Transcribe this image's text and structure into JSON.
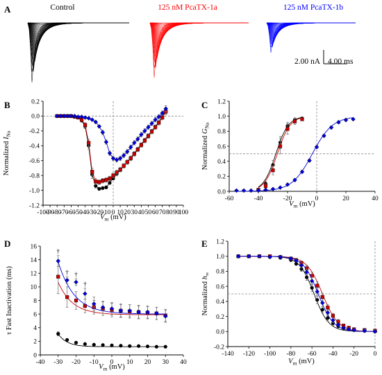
{
  "panel_a": {
    "letter": "A",
    "traces": [
      {
        "label": "Control",
        "color": "#000000",
        "n_traces": 30,
        "peak_scale": 1.0
      },
      {
        "label": "125 nM PcaTX-1a",
        "color": "#ff0000",
        "n_traces": 30,
        "peak_scale": 0.92
      },
      {
        "label": "125 nM PcaTX-1b",
        "color": "#0000ff",
        "n_traces": 30,
        "peak_scale": 0.5
      }
    ],
    "scale_bar": {
      "current_label": "2.00 nA",
      "time_label": "4.00 ms"
    }
  },
  "colors": {
    "control": "#000000",
    "pcatx_1a": "#cc0000",
    "pcatx_1b": "#0000dd"
  },
  "chart_data": [
    {
      "panel": "B",
      "type": "line",
      "xlabel_main": "V",
      "xlabel_sub": "m",
      "xlabel_unit": " (mV)",
      "ylabel_main": "Normalized I",
      "ylabel_sub": "Na",
      "xlim": [
        -100,
        100
      ],
      "ylim": [
        -1.2,
        0.2
      ],
      "xticks": [
        -100,
        -90,
        -80,
        -70,
        -60,
        -50,
        -40,
        -30,
        -20,
        -10,
        0,
        10,
        20,
        30,
        40,
        50,
        60,
        70,
        80,
        90,
        100
      ],
      "yticks": [
        -1.2,
        -1.0,
        -0.8,
        -0.6,
        -0.4,
        -0.2,
        0.0,
        0.2
      ],
      "ytick_labels": [
        "-1.2",
        "-1.0",
        "-0.8",
        "-0.6",
        "-0.4",
        "-0.2",
        "0.0",
        "0.2"
      ],
      "ref_lines": {
        "x": 0,
        "y": 0
      },
      "x": [
        -80,
        -75,
        -70,
        -65,
        -60,
        -55,
        -50,
        -45,
        -40,
        -35,
        -30,
        -25,
        -20,
        -15,
        -10,
        -5,
        0,
        5,
        10,
        15,
        20,
        25,
        30,
        35,
        40,
        45,
        50,
        55,
        60,
        65,
        70,
        75
      ],
      "series": [
        {
          "key": "control",
          "marker": "circle",
          "values": [
            0,
            0,
            0,
            0,
            0,
            -0.01,
            -0.02,
            -0.06,
            -0.14,
            -0.4,
            -0.79,
            -0.94,
            -0.98,
            -0.97,
            -0.96,
            -0.9,
            -0.84,
            -0.78,
            -0.73,
            -0.67,
            -0.62,
            -0.56,
            -0.5,
            -0.44,
            -0.38,
            -0.32,
            -0.26,
            -0.2,
            -0.14,
            -0.08,
            -0.01,
            0.07
          ],
          "errors": [
            0.01,
            0.01,
            0.01,
            0.01,
            0.01,
            0.01,
            0.01,
            0.02,
            0.03,
            0.05,
            0.05,
            0.03,
            0.02,
            0.02,
            0.02,
            0.02,
            0.02,
            0.02,
            0.02,
            0.02,
            0.02,
            0.02,
            0.02,
            0.02,
            0.02,
            0.02,
            0.02,
            0.02,
            0.02,
            0.02,
            0.03,
            0.04
          ]
        },
        {
          "key": "pcatx_1a",
          "marker": "square",
          "values": [
            0,
            0,
            0,
            0,
            0,
            -0.01,
            -0.02,
            -0.05,
            -0.12,
            -0.36,
            -0.75,
            -0.88,
            -0.89,
            -0.87,
            -0.86,
            -0.84,
            -0.8,
            -0.76,
            -0.72,
            -0.67,
            -0.62,
            -0.57,
            -0.51,
            -0.45,
            -0.39,
            -0.33,
            -0.27,
            -0.21,
            -0.15,
            -0.09,
            -0.02,
            0.06
          ],
          "errors": [
            0.01,
            0.01,
            0.01,
            0.01,
            0.01,
            0.01,
            0.01,
            0.02,
            0.03,
            0.05,
            0.05,
            0.04,
            0.03,
            0.03,
            0.03,
            0.03,
            0.03,
            0.03,
            0.03,
            0.03,
            0.03,
            0.03,
            0.03,
            0.03,
            0.03,
            0.03,
            0.03,
            0.03,
            0.03,
            0.03,
            0.03,
            0.04
          ]
        },
        {
          "key": "pcatx_1b",
          "marker": "diamond",
          "values": [
            0,
            0,
            0,
            0,
            0,
            0,
            -0.01,
            -0.01,
            -0.02,
            -0.03,
            -0.05,
            -0.08,
            -0.14,
            -0.22,
            -0.35,
            -0.5,
            -0.57,
            -0.59,
            -0.57,
            -0.53,
            -0.48,
            -0.42,
            -0.36,
            -0.31,
            -0.25,
            -0.2,
            -0.15,
            -0.1,
            -0.05,
            -0.01,
            0.04,
            0.1
          ],
          "errors": [
            0.01,
            0.01,
            0.01,
            0.01,
            0.01,
            0.01,
            0.01,
            0.01,
            0.01,
            0.01,
            0.01,
            0.02,
            0.02,
            0.03,
            0.03,
            0.03,
            0.03,
            0.03,
            0.03,
            0.03,
            0.03,
            0.03,
            0.03,
            0.03,
            0.03,
            0.03,
            0.03,
            0.03,
            0.03,
            0.03,
            0.03,
            0.04
          ]
        }
      ]
    },
    {
      "panel": "C",
      "type": "line",
      "xlabel_main": "V",
      "xlabel_sub": "m",
      "xlabel_unit": " (mV)",
      "ylabel_main": "Normalized G",
      "ylabel_sub": "Na",
      "xlim": [
        -60,
        40
      ],
      "ylim": [
        0,
        1.2
      ],
      "xticks": [
        -60,
        -40,
        -20,
        0,
        20,
        40
      ],
      "yticks": [
        0,
        0.2,
        0.4,
        0.6,
        0.8,
        1.0,
        1.2
      ],
      "ytick_labels": [
        "0.0",
        "0.2",
        "0.4",
        "0.6",
        "0.8",
        "1.0",
        "1.2"
      ],
      "ref_lines": {
        "x": 0,
        "y": 0.5
      },
      "series": [
        {
          "key": "control",
          "marker": "circle",
          "x": [
            -40,
            -35,
            -30,
            -25,
            -20,
            -15,
            -10
          ],
          "values": [
            0.02,
            0.1,
            0.35,
            0.65,
            0.87,
            0.95,
            0.97
          ],
          "errors": [
            0.01,
            0.03,
            0.06,
            0.08,
            0.05,
            0.03,
            0.02
          ],
          "fit": {
            "v_half": -28,
            "k": 4.3
          }
        },
        {
          "key": "pcatx_1a",
          "marker": "square",
          "x": [
            -40,
            -35,
            -30,
            -25,
            -20,
            -15,
            -10
          ],
          "values": [
            0.02,
            0.07,
            0.28,
            0.6,
            0.83,
            0.93,
            0.96
          ],
          "errors": [
            0.01,
            0.03,
            0.06,
            0.1,
            0.07,
            0.04,
            0.02
          ],
          "fit": {
            "v_half": -27,
            "k": 4.4
          }
        },
        {
          "key": "pcatx_1b",
          "marker": "diamond",
          "x": [
            -55,
            -50,
            -45,
            -40,
            -35,
            -30,
            -25,
            -20,
            -15,
            -10,
            -5,
            0,
            5,
            10,
            15,
            20,
            25
          ],
          "values": [
            0.01,
            0.01,
            0.01,
            0.01,
            0.02,
            0.03,
            0.05,
            0.09,
            0.15,
            0.26,
            0.41,
            0.59,
            0.74,
            0.85,
            0.92,
            0.95,
            0.96
          ],
          "errors": [
            0.01,
            0.01,
            0.01,
            0.01,
            0.01,
            0.01,
            0.01,
            0.01,
            0.02,
            0.02,
            0.02,
            0.02,
            0.02,
            0.02,
            0.02,
            0.02,
            0.01
          ],
          "fit": {
            "v_half": -3,
            "k": 7.0
          }
        }
      ]
    },
    {
      "panel": "D",
      "type": "line",
      "xlabel_main": "V",
      "xlabel_sub": "m",
      "xlabel_unit": " (mV)",
      "ylabel_main": "τ Fast Inactivation (ms)",
      "ylabel_sub": "",
      "xlim": [
        -40,
        40
      ],
      "ylim": [
        0,
        16
      ],
      "xticks": [
        -40,
        -30,
        -20,
        -10,
        0,
        10,
        20,
        30,
        40
      ],
      "yticks": [
        0,
        2,
        4,
        6,
        8,
        10,
        12,
        14,
        16
      ],
      "ytick_labels": [
        "0",
        "2",
        "4",
        "6",
        "8",
        "10",
        "12",
        "14",
        "16"
      ],
      "ref_lines": {},
      "x": [
        -30,
        -25,
        -20,
        -15,
        -10,
        -5,
        0,
        5,
        10,
        15,
        20,
        25,
        30
      ],
      "daggers": {
        "symbol": "†",
        "x": [
          -30,
          -25,
          -20,
          -15
        ]
      },
      "series": [
        {
          "key": "control",
          "marker": "circle",
          "values": [
            3.1,
            2.2,
            1.8,
            1.6,
            1.5,
            1.45,
            1.4,
            1.35,
            1.3,
            1.3,
            1.25,
            1.2,
            1.2
          ],
          "errors": [
            0.3,
            0.2,
            0.15,
            0.1,
            0.1,
            0.1,
            0.1,
            0.1,
            0.1,
            0.1,
            0.1,
            0.1,
            0.1
          ],
          "fit": {
            "y0": 1.2,
            "A": 1.9,
            "tau": 5
          }
        },
        {
          "key": "pcatx_1a",
          "marker": "square",
          "values": [
            11.5,
            8.5,
            8.0,
            7.2,
            7.0,
            6.8,
            6.6,
            6.5,
            6.4,
            6.3,
            6.2,
            6.1,
            5.8
          ],
          "errors": [
            2.5,
            1.5,
            1.3,
            1.0,
            1.0,
            1.0,
            1.0,
            1.0,
            1.0,
            1.0,
            0.9,
            0.9,
            0.9
          ],
          "fit": {
            "y0": 5.9,
            "A": 4.8,
            "tau": 8
          }
        },
        {
          "key": "pcatx_1b",
          "marker": "diamond",
          "values": [
            13.8,
            11.0,
            10.7,
            9.0,
            7.5,
            7.0,
            6.8,
            6.5,
            6.5,
            6.3,
            6.3,
            6.1,
            5.7
          ],
          "errors": [
            0.8,
            0.5,
            0.5,
            0.8,
            1.0,
            0.9,
            0.9,
            0.9,
            0.9,
            0.9,
            0.9,
            0.9,
            0.9
          ],
          "fit": {
            "y0": 6.0,
            "A": 7.7,
            "tau": 9
          }
        }
      ]
    },
    {
      "panel": "E",
      "type": "line",
      "xlabel_main": "V",
      "xlabel_sub": "m",
      "xlabel_unit": " (mV)",
      "ylabel_main": "Normalized h",
      "ylabel_sub": "∞",
      "xlim": [
        -140,
        0
      ],
      "ylim": [
        -0.2,
        1.2
      ],
      "xticks": [
        -140,
        -120,
        -100,
        -80,
        -60,
        -40,
        -20,
        0
      ],
      "yticks": [
        -0.2,
        0,
        0.2,
        0.4,
        0.6,
        0.8,
        1.0,
        1.2
      ],
      "ytick_labels": [
        "-0.2",
        "0.0",
        "0.2",
        "0.4",
        "0.6",
        "0.8",
        "1.0",
        "1.2"
      ],
      "ref_lines": {
        "x": 0,
        "y": 0.5
      },
      "x": [
        -130,
        -120,
        -110,
        -100,
        -90,
        -80,
        -75,
        -70,
        -65,
        -60,
        -55,
        -50,
        -45,
        -40,
        -35,
        -30,
        -25,
        -20,
        -10,
        0
      ],
      "series": [
        {
          "key": "control",
          "marker": "circle",
          "values": [
            1.0,
            1.0,
            1.0,
            0.99,
            0.98,
            0.95,
            0.9,
            0.83,
            0.72,
            0.58,
            0.42,
            0.29,
            0.18,
            0.11,
            0.07,
            0.04,
            0.03,
            0.02,
            0.01,
            0.01
          ],
          "errors": [
            0.01,
            0.01,
            0.01,
            0.01,
            0.01,
            0.02,
            0.02,
            0.03,
            0.04,
            0.05,
            0.05,
            0.04,
            0.04,
            0.03,
            0.02,
            0.02,
            0.02,
            0.02,
            0.02,
            0.02
          ],
          "fit": {
            "v_half": -58,
            "k": 7
          }
        },
        {
          "key": "pcatx_1a",
          "marker": "square",
          "values": [
            1.0,
            1.0,
            1.0,
            1.0,
            0.99,
            0.97,
            0.95,
            0.91,
            0.84,
            0.74,
            0.61,
            0.46,
            0.32,
            0.21,
            0.13,
            0.08,
            0.05,
            0.03,
            0.02,
            0.01
          ],
          "errors": [
            0.01,
            0.01,
            0.01,
            0.01,
            0.01,
            0.02,
            0.02,
            0.03,
            0.04,
            0.05,
            0.05,
            0.05,
            0.04,
            0.03,
            0.03,
            0.02,
            0.02,
            0.02,
            0.02,
            0.02
          ],
          "fit": {
            "v_half": -50,
            "k": 7.5
          }
        },
        {
          "key": "pcatx_1b",
          "marker": "diamond",
          "values": [
            1.0,
            1.0,
            1.0,
            0.99,
            0.99,
            0.97,
            0.94,
            0.88,
            0.79,
            0.67,
            0.53,
            0.38,
            0.25,
            0.15,
            0.09,
            0.05,
            0.03,
            0.02,
            0.01,
            0.0
          ],
          "errors": [
            0.01,
            0.01,
            0.01,
            0.01,
            0.01,
            0.02,
            0.02,
            0.03,
            0.04,
            0.05,
            0.05,
            0.05,
            0.04,
            0.03,
            0.02,
            0.02,
            0.02,
            0.02,
            0.02,
            0.02
          ],
          "fit": {
            "v_half": -54,
            "k": 7.2
          }
        }
      ]
    }
  ]
}
